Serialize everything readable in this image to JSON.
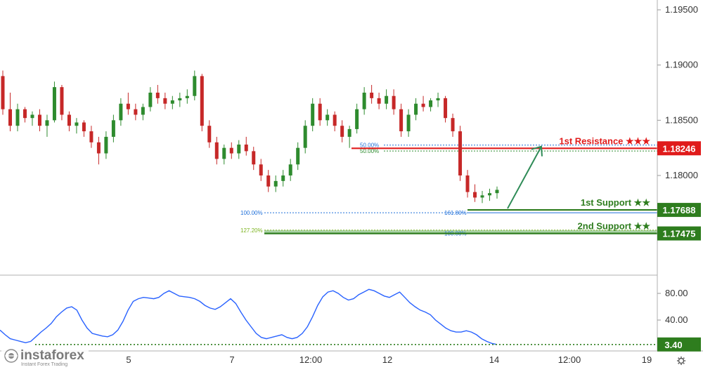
{
  "chart_data": [
    {
      "type": "candlestick",
      "symbol_hint": "EURUSD",
      "x_ticks": [
        "5",
        "7",
        "12:00",
        "12",
        "14",
        "12:00",
        "19"
      ],
      "y_ticks": [
        "1.19500",
        "1.19000",
        "1.18500",
        "1.18000"
      ],
      "ylim": [
        1.1705,
        1.1975
      ],
      "grid": false,
      "candles": [
        [
          1.189,
          1.1895,
          1.1855,
          1.186
        ],
        [
          1.186,
          1.1875,
          1.184,
          1.1845
        ],
        [
          1.1845,
          1.1865,
          1.184,
          1.186
        ],
        [
          1.186,
          1.1862,
          1.1848,
          1.1852
        ],
        [
          1.1852,
          1.1858,
          1.1845,
          1.1855
        ],
        [
          1.1855,
          1.186,
          1.184,
          1.1845
        ],
        [
          1.1845,
          1.1855,
          1.1835,
          1.185
        ],
        [
          1.185,
          1.1885,
          1.1848,
          1.188
        ],
        [
          1.188,
          1.1882,
          1.185,
          1.1855
        ],
        [
          1.1855,
          1.1858,
          1.184,
          1.1845
        ],
        [
          1.1845,
          1.1852,
          1.1838,
          1.1848
        ],
        [
          1.1848,
          1.185,
          1.1835,
          1.184
        ],
        [
          1.184,
          1.1845,
          1.1825,
          1.183
        ],
        [
          1.183,
          1.1835,
          1.181,
          1.182
        ],
        [
          1.182,
          1.184,
          1.1815,
          1.1835
        ],
        [
          1.1835,
          1.1855,
          1.183,
          1.185
        ],
        [
          1.185,
          1.187,
          1.1845,
          1.1865
        ],
        [
          1.1865,
          1.1875,
          1.1855,
          1.186
        ],
        [
          1.186,
          1.1865,
          1.185,
          1.1855
        ],
        [
          1.1855,
          1.1865,
          1.185,
          1.1862
        ],
        [
          1.1862,
          1.188,
          1.1858,
          1.1875
        ],
        [
          1.1875,
          1.1882,
          1.1865,
          1.187
        ],
        [
          1.187,
          1.1875,
          1.186,
          1.1865
        ],
        [
          1.1865,
          1.1872,
          1.186,
          1.1868
        ],
        [
          1.1868,
          1.1875,
          1.1862,
          1.187
        ],
        [
          1.187,
          1.1878,
          1.1865,
          1.1872
        ],
        [
          1.1872,
          1.1895,
          1.1868,
          1.189
        ],
        [
          1.189,
          1.1892,
          1.184,
          1.1845
        ],
        [
          1.1845,
          1.185,
          1.1825,
          1.183
        ],
        [
          1.183,
          1.1835,
          1.181,
          1.1815
        ],
        [
          1.1815,
          1.1828,
          1.181,
          1.1825
        ],
        [
          1.1825,
          1.183,
          1.1815,
          1.182
        ],
        [
          1.182,
          1.1832,
          1.1815,
          1.1828
        ],
        [
          1.1828,
          1.1835,
          1.1818,
          1.1822
        ],
        [
          1.1822,
          1.1826,
          1.1805,
          1.181
        ],
        [
          1.181,
          1.1815,
          1.1795,
          1.18
        ],
        [
          1.18,
          1.1805,
          1.1785,
          1.179
        ],
        [
          1.179,
          1.18,
          1.1785,
          1.1795
        ],
        [
          1.1795,
          1.1805,
          1.179,
          1.18
        ],
        [
          1.18,
          1.1815,
          1.1795,
          1.181
        ],
        [
          1.181,
          1.183,
          1.1805,
          1.1825
        ],
        [
          1.1825,
          1.185,
          1.182,
          1.1845
        ],
        [
          1.1845,
          1.187,
          1.184,
          1.1865
        ],
        [
          1.1865,
          1.187,
          1.1845,
          1.185
        ],
        [
          1.185,
          1.186,
          1.1845,
          1.1855
        ],
        [
          1.1855,
          1.1858,
          1.184,
          1.1845
        ],
        [
          1.1845,
          1.185,
          1.183,
          1.1835
        ],
        [
          1.1835,
          1.1845,
          1.1825,
          1.1842
        ],
        [
          1.1842,
          1.1865,
          1.1838,
          1.186
        ],
        [
          1.186,
          1.188,
          1.1855,
          1.1875
        ],
        [
          1.1875,
          1.1882,
          1.1865,
          1.187
        ],
        [
          1.187,
          1.1875,
          1.186,
          1.1865
        ],
        [
          1.1865,
          1.1878,
          1.186,
          1.1872
        ],
        [
          1.1872,
          1.1878,
          1.1855,
          1.186
        ],
        [
          1.186,
          1.1865,
          1.1835,
          1.184
        ],
        [
          1.184,
          1.186,
          1.1835,
          1.1855
        ],
        [
          1.1855,
          1.187,
          1.185,
          1.1865
        ],
        [
          1.1865,
          1.1872,
          1.1858,
          1.1862
        ],
        [
          1.1862,
          1.187,
          1.1858,
          1.1868
        ],
        [
          1.1868,
          1.1875,
          1.1862,
          1.187
        ],
        [
          1.187,
          1.1872,
          1.1848,
          1.1852
        ],
        [
          1.1852,
          1.1856,
          1.1835,
          1.184
        ],
        [
          1.184,
          1.1845,
          1.1795,
          1.18
        ],
        [
          1.18,
          1.1805,
          1.178,
          1.1785
        ],
        [
          1.1785,
          1.1792,
          1.1776,
          1.178
        ],
        [
          1.178,
          1.1786,
          1.1775,
          1.1782
        ],
        [
          1.1782,
          1.1788,
          1.1777,
          1.1784
        ],
        [
          1.1784,
          1.179,
          1.1779,
          1.1787
        ]
      ],
      "fibonacci": [
        {
          "label": "50.00%",
          "value": 1.18275,
          "color": "#1e6fd9"
        },
        {
          "label": "50.00%",
          "value": 1.18222,
          "color": "#2e8b2e"
        },
        {
          "label": "100.00%",
          "value": 1.17662,
          "color": "#1e6fd9"
        },
        {
          "label": "161.80%",
          "value": 1.17662,
          "color": "#1e6fd9"
        },
        {
          "label": "127.20%",
          "value": 1.17505,
          "color": "#7bb31e"
        },
        {
          "label": "100.00%",
          "value": 1.17475,
          "color": "#1e6fd9"
        }
      ],
      "levels": [
        {
          "name": "1st Resistance ★★★",
          "value": "1.18246",
          "price": 1.18246,
          "color": "#e01b1b"
        },
        {
          "name": "1st Support ★★",
          "value": "1.17688",
          "price": 1.17688,
          "color": "#2e7d1e"
        },
        {
          "name": "2nd Support ★★",
          "value": "1.17475",
          "price": 1.17475,
          "color": "#2e7d1e"
        }
      ],
      "colors": {
        "up": "#2e8b2e",
        "down": "#c62828",
        "arrow": "#2e8b57",
        "zone": "#8fc48a"
      }
    },
    {
      "type": "line",
      "name": "oscillator",
      "y_ticks": [
        "80.00",
        "40.00"
      ],
      "ylim": [
        0,
        100
      ],
      "current_value": "3.40",
      "current": 3.4,
      "values": [
        25,
        18,
        12,
        10,
        8,
        6,
        8,
        15,
        22,
        28,
        35,
        45,
        52,
        58,
        60,
        55,
        40,
        28,
        20,
        18,
        16,
        15,
        18,
        25,
        38,
        55,
        68,
        72,
        74,
        73,
        72,
        74,
        80,
        84,
        80,
        76,
        75,
        74,
        72,
        68,
        62,
        58,
        56,
        60,
        66,
        72,
        65,
        52,
        40,
        30,
        20,
        14,
        12,
        14,
        16,
        18,
        14,
        12,
        14,
        20,
        30,
        45,
        62,
        75,
        82,
        84,
        80,
        74,
        70,
        72,
        78,
        82,
        86,
        84,
        80,
        76,
        74,
        78,
        82,
        74,
        66,
        60,
        55,
        52,
        48,
        40,
        34,
        28,
        24,
        22,
        22,
        24,
        22,
        18,
        12,
        8,
        5,
        3.4
      ],
      "color": "#2962ff"
    }
  ],
  "watermark": {
    "brand": "instaforex",
    "tagline": "Instant Forex Trading"
  },
  "icons": {
    "settings": "gear-icon"
  }
}
